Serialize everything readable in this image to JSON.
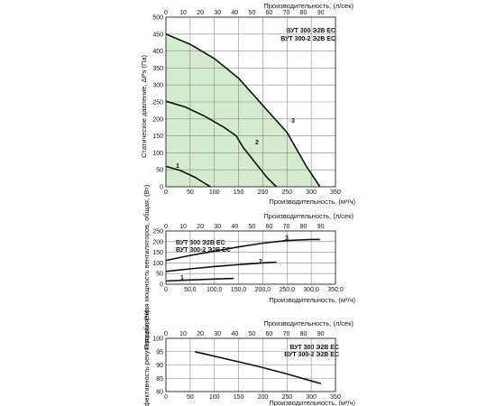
{
  "chart_data": [
    {
      "type": "line",
      "top_axis_label": "Производительность, (л/сек)",
      "top_ticks": [
        "0",
        "10",
        "20",
        "30",
        "40",
        "50",
        "60",
        "70",
        "80",
        "90"
      ],
      "xlabel": "Производительность, (м³/ч)",
      "ylabel": "Статическое давление, ΔPs (Па)",
      "xlim": [
        0,
        350
      ],
      "ylim": [
        0,
        500
      ],
      "x_ticks": [
        "0",
        "50",
        "100",
        "150",
        "200",
        "250",
        "300",
        "350"
      ],
      "y_ticks": [
        "0",
        "50",
        "100",
        "150",
        "200",
        "250",
        "300",
        "350",
        "400",
        "450",
        "500"
      ],
      "legend": [
        "ВУТ 300 Э2В ЕС",
        "ВУТ 300-2 Э2В ЕС"
      ],
      "legend_position": "top-right",
      "shaded_area": "under curve 3",
      "shade_color": "#d4ebcd",
      "series": [
        {
          "name": "1",
          "points": [
            [
              0,
              60
            ],
            [
              30,
              48
            ],
            [
              60,
              28
            ],
            [
              80,
              10
            ],
            [
              92,
              0
            ]
          ]
        },
        {
          "name": "2",
          "points": [
            [
              0,
              252
            ],
            [
              40,
              235
            ],
            [
              80,
              208
            ],
            [
              120,
              175
            ],
            [
              145,
              150
            ],
            [
              160,
              115
            ],
            [
              185,
              70
            ],
            [
              210,
              25
            ],
            [
              228,
              0
            ]
          ]
        },
        {
          "name": "3",
          "points": [
            [
              0,
              450
            ],
            [
              50,
              420
            ],
            [
              100,
              378
            ],
            [
              150,
              320
            ],
            [
              200,
              240
            ],
            [
              250,
              160
            ],
            [
              290,
              60
            ],
            [
              318,
              0
            ]
          ]
        }
      ]
    },
    {
      "type": "line",
      "top_axis_label": "Производительность, (л/сек)",
      "top_ticks": [
        "0",
        "10",
        "20",
        "30",
        "40",
        "50",
        "60",
        "70",
        "80",
        "90"
      ],
      "xlabel": "Производительность, (м³/ч)",
      "ylabel": "Потребляемая мощность вентиляторов, общая, (Вт)",
      "xlim": [
        0,
        350
      ],
      "ylim": [
        0,
        250
      ],
      "x_ticks": [
        "0",
        "50,0",
        "100,0",
        "150,0",
        "200,0",
        "250,0",
        "300,0",
        "350,0"
      ],
      "y_ticks": [
        "0",
        "50",
        "100",
        "150",
        "200",
        "250"
      ],
      "legend": [
        "ВУТ 300 Э2В ЕС",
        "ВУТ 300-2 Э2В ЕС"
      ],
      "legend_position": "top-left",
      "series": [
        {
          "name": "1",
          "points": [
            [
              0,
              15
            ],
            [
              50,
              20
            ],
            [
              100,
              24
            ],
            [
              140,
              27
            ]
          ]
        },
        {
          "name": "2",
          "points": [
            [
              0,
              60
            ],
            [
              50,
              72
            ],
            [
              100,
              83
            ],
            [
              150,
              92
            ],
            [
              200,
              100
            ],
            [
              228,
              104
            ]
          ]
        },
        {
          "name": "3",
          "points": [
            [
              0,
              112
            ],
            [
              50,
              135
            ],
            [
              100,
              155
            ],
            [
              150,
              175
            ],
            [
              200,
              193
            ],
            [
              250,
              205
            ],
            [
              300,
              210
            ],
            [
              318,
              210
            ]
          ]
        }
      ]
    },
    {
      "type": "line",
      "top_axis_label": "Производительность, (л/сек)",
      "top_ticks": [
        "0",
        "10",
        "20",
        "30",
        "40",
        "50",
        "60",
        "70",
        "80",
        "90"
      ],
      "xlabel": "Производительность, (м³/ч)",
      "ylabel": "Эффективность рекуперации, (%)",
      "xlim": [
        0,
        350
      ],
      "ylim": [
        80,
        100
      ],
      "x_ticks": [
        "0",
        "50",
        "100",
        "150",
        "200",
        "250",
        "300",
        "350"
      ],
      "y_ticks": [
        "80",
        "85",
        "90",
        "95",
        "100"
      ],
      "legend": [
        "ВУТ 300 Э2В ЕС",
        "ВУТ 300-2 Э2В ЕС"
      ],
      "legend_position": "top-right",
      "series": [
        {
          "name": "",
          "points": [
            [
              60,
              95
            ],
            [
              100,
              93.3
            ],
            [
              150,
              91.2
            ],
            [
              200,
              89
            ],
            [
              250,
              86.6
            ],
            [
              300,
              84
            ],
            [
              320,
              83
            ]
          ]
        }
      ]
    }
  ]
}
